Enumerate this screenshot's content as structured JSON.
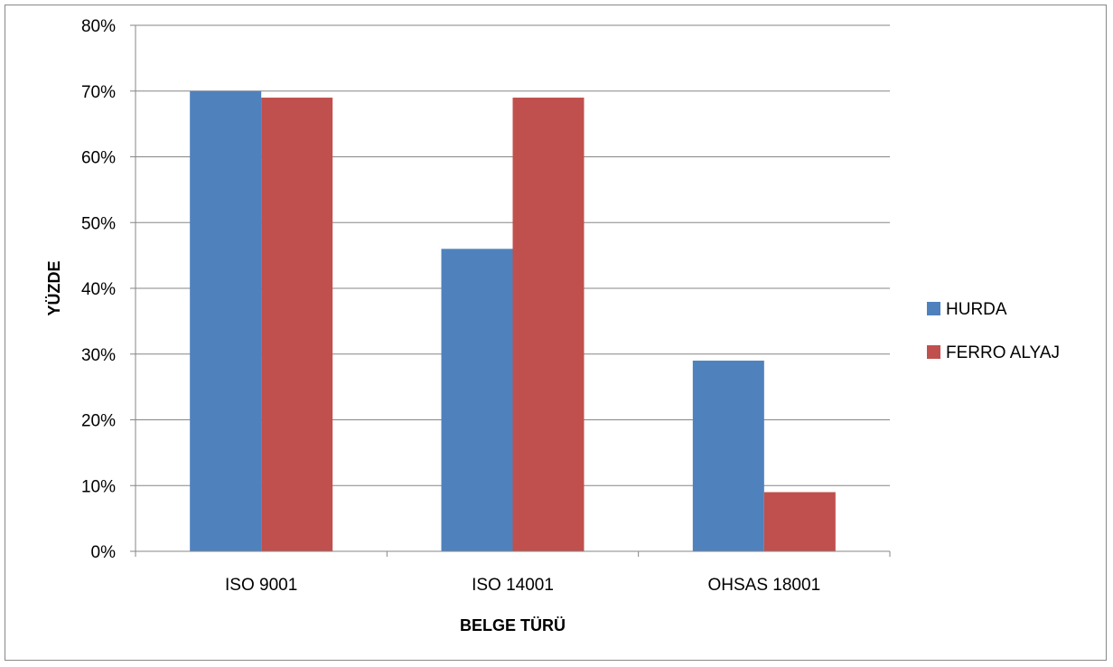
{
  "chart_data": {
    "type": "bar",
    "title": "",
    "xlabel": "BELGE TÜRÜ",
    "ylabel": "YÜZDE",
    "categories": [
      "ISO 9001",
      "ISO 14001",
      "OHSAS 18001"
    ],
    "series": [
      {
        "name": "HURDA",
        "color": "#4F81BD",
        "values": [
          70,
          46,
          29
        ]
      },
      {
        "name": "FERRO ALYAJ",
        "color": "#C0504D",
        "values": [
          69,
          69,
          9
        ]
      }
    ],
    "ylim": [
      0,
      80
    ],
    "yticks": [
      0,
      10,
      20,
      30,
      40,
      50,
      60,
      70,
      80
    ],
    "ytick_labels": [
      "0%",
      "10%",
      "20%",
      "30%",
      "40%",
      "50%",
      "60%",
      "70%",
      "80%"
    ],
    "grid": true,
    "legend_position": "right"
  }
}
